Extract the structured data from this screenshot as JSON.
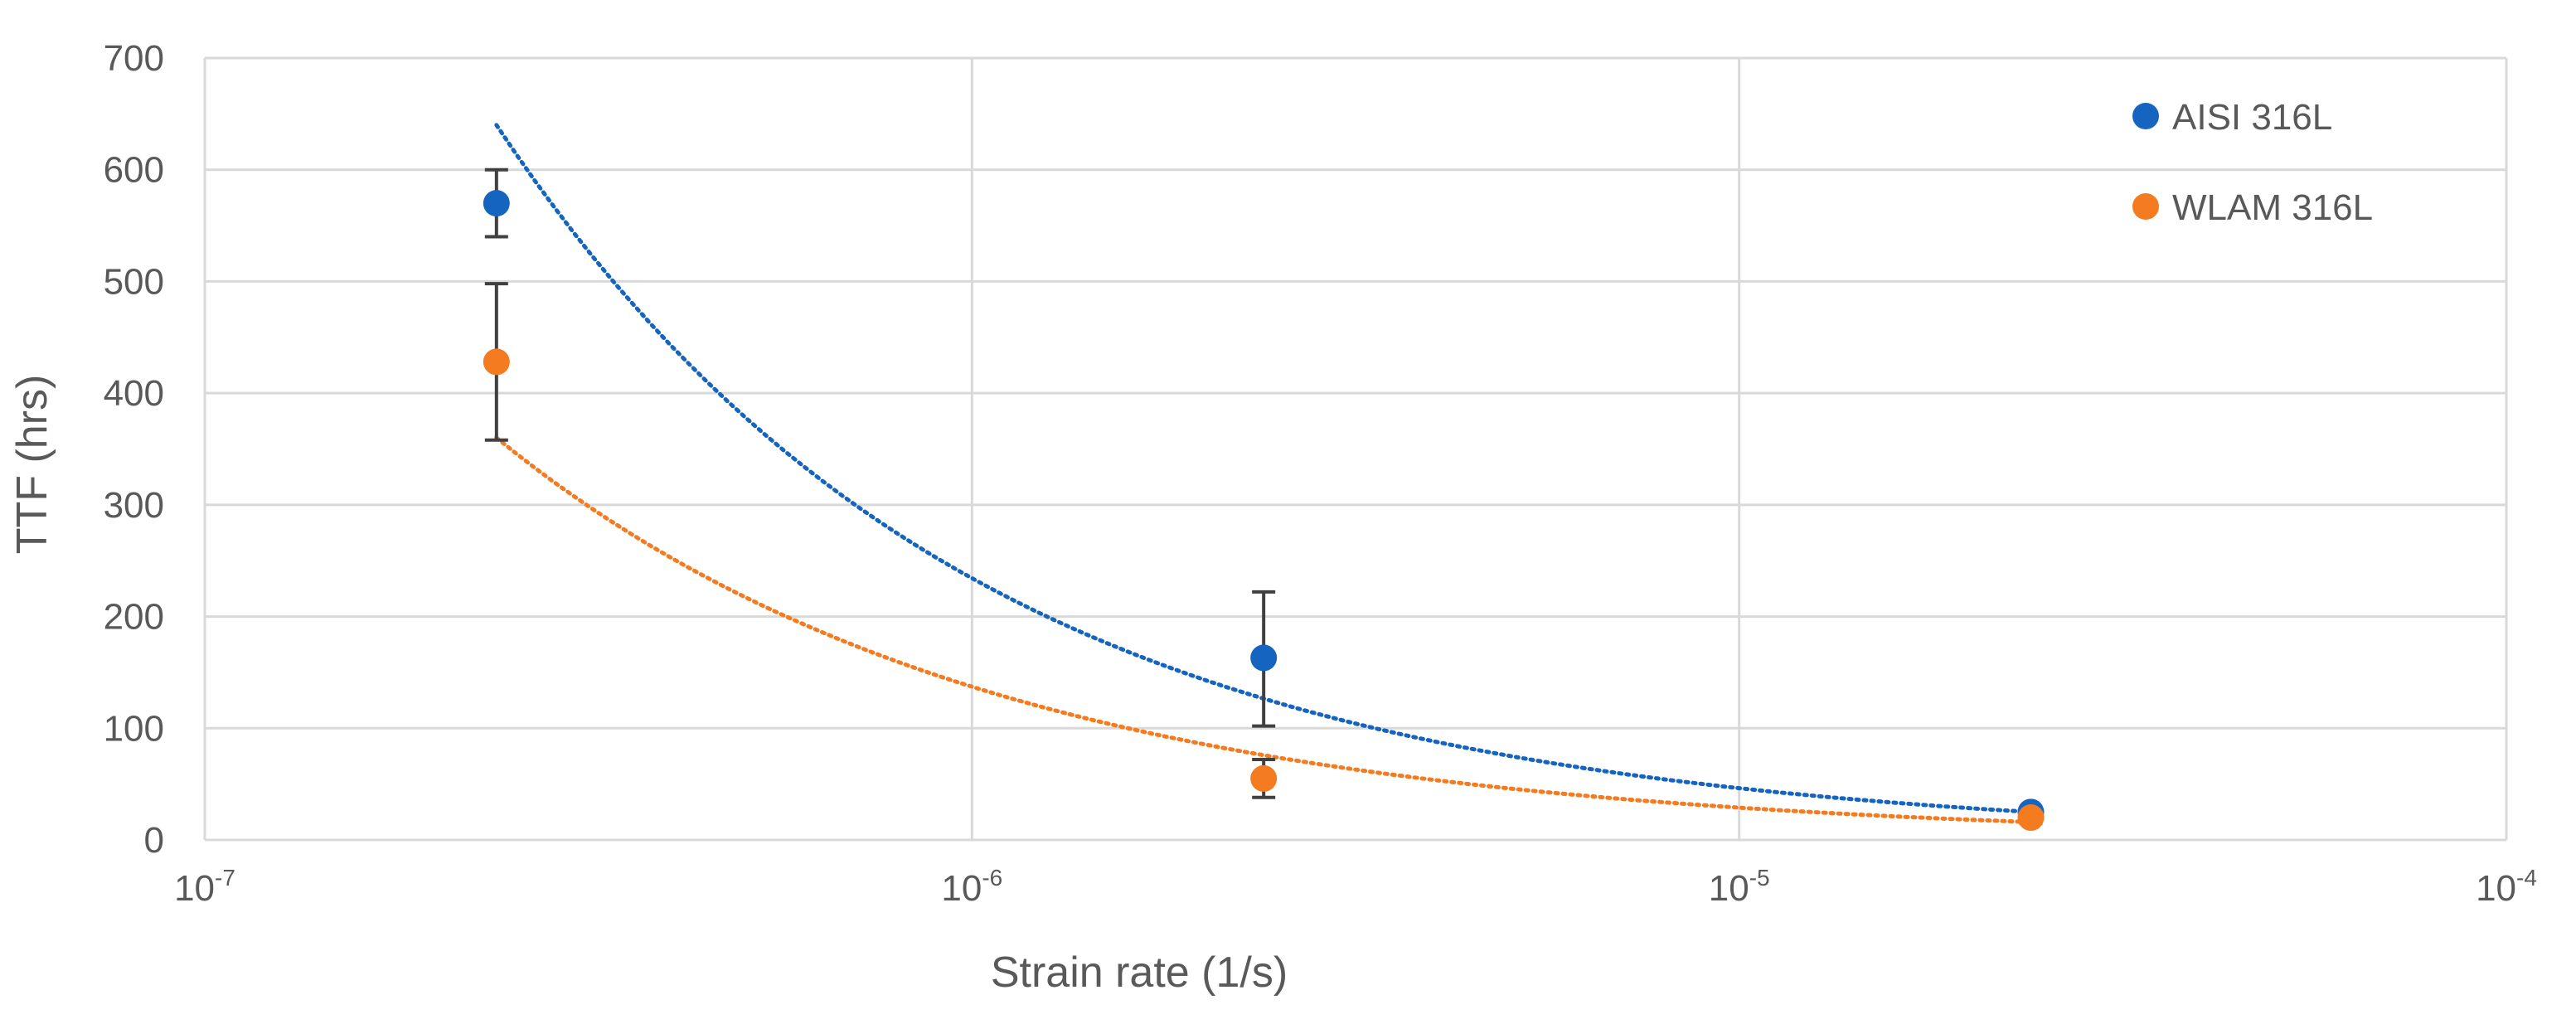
{
  "chart_data": {
    "type": "scatter",
    "title": "",
    "xlabel": "Strain rate (1/s)",
    "ylabel": "TTF (hrs)",
    "xscale": "log",
    "xlim": [
      1e-07,
      0.0001
    ],
    "ylim": [
      0,
      700
    ],
    "yticks": [
      0,
      100,
      200,
      300,
      400,
      500,
      600,
      700
    ],
    "yticklabels": [
      "0",
      "100",
      "200",
      "300",
      "400",
      "500",
      "600",
      "700"
    ],
    "xticks": [
      1e-07,
      1e-06,
      1e-05,
      0.0001
    ],
    "xticklabels": [
      {
        "base": "10",
        "exp": "-7"
      },
      {
        "base": "10",
        "exp": "-6"
      },
      {
        "base": "10",
        "exp": "-5"
      },
      {
        "base": "10",
        "exp": "-4"
      }
    ],
    "grid": true,
    "legend_position": "top-right",
    "series": [
      {
        "name": "AISI 316L",
        "color": "#1565C0",
        "x": [
          2.4e-07,
          2.4e-06,
          2.4e-05
        ],
        "y": [
          570,
          163,
          25
        ],
        "err_low": [
          540,
          102,
          22
        ],
        "err_high": [
          600,
          222,
          28
        ],
        "trendline": {
          "type": "power",
          "x": [
            2.4e-07,
            2.4e-05
          ],
          "y": [
            640,
            25
          ],
          "style": "dotted"
        }
      },
      {
        "name": "WLAM 316L",
        "color": "#F47B20",
        "x": [
          2.4e-07,
          2.4e-06,
          2.4e-05
        ],
        "y": [
          428,
          55,
          20
        ],
        "err_low": [
          358,
          38,
          15
        ],
        "err_high": [
          498,
          72,
          25
        ],
        "trendline": {
          "type": "power",
          "x": [
            2.4e-07,
            2.4e-05
          ],
          "y": [
            360,
            16
          ],
          "style": "dotted"
        }
      }
    ]
  }
}
